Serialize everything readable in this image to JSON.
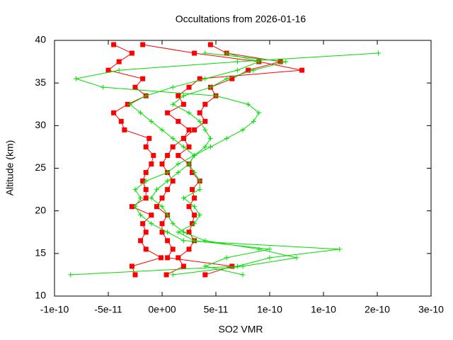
{
  "chart_data": {
    "type": "line",
    "title": "Occultations from 2026-01-16",
    "x_label": "SO2 VMR",
    "y_label": "Altitude (km)",
    "xlim": [
      -1e-10,
      2.5e-10
    ],
    "xticks": [
      {
        "value": -1e-10,
        "label": "-1e-10"
      },
      {
        "value": -5e-11,
        "label": "-5e-11"
      },
      {
        "value": 0,
        "label": "0e+00"
      },
      {
        "value": 5e-11,
        "label": "5e-11"
      },
      {
        "value": 1e-10,
        "label": "1e-10"
      },
      {
        "value": 1.5e-10,
        "label": "1e-10"
      },
      {
        "value": 2e-10,
        "label": "2e-10"
      },
      {
        "value": 2.5e-10,
        "label": "3e-10"
      }
    ],
    "ylim": [
      10,
      40
    ],
    "yticks": [
      10,
      15,
      20,
      25,
      30,
      35,
      40
    ],
    "grid": false,
    "series": [
      {
        "color": "#ff0000",
        "marker": "square",
        "altitude": [
          12.5,
          13.5,
          14.5,
          15.5,
          16.5,
          17.5,
          18.5,
          19.5,
          20.5,
          21.5,
          22.5,
          23.5,
          24.5,
          25.5,
          26.5,
          27.5,
          28.5,
          29.5,
          30.5,
          31.5,
          32.5,
          33.5,
          34.5,
          35.5,
          36.5,
          37.5,
          38.5,
          39.5
        ],
        "values": [
          -2.5e-11,
          -2.8e-11,
          -1e-12,
          -1.5e-11,
          -2e-11,
          -1.5e-11,
          -1.8e-11,
          -1e-11,
          -2.8e-11,
          -1.5e-11,
          -1.5e-11,
          -1.8e-11,
          -1.5e-11,
          -1e-11,
          -8e-12,
          -1.5e-11,
          -1.2e-11,
          -3.5e-11,
          -3.8e-11,
          -4.5e-11,
          -3.2e-11,
          -1.5e-11,
          -2.5e-11,
          -1.8e-11,
          -5e-11,
          -4e-11,
          -2.8e-11,
          -4.5e-11
        ]
      },
      {
        "color": "#ff0000",
        "marker": "square",
        "altitude": [
          12.5,
          13.5,
          14.5,
          15.5,
          16.5,
          17.5,
          18.5,
          19.5,
          20.5,
          21.5,
          22.5,
          23.5,
          24.5,
          25.5,
          26.5,
          27.5,
          28.5,
          29.5,
          30.5,
          31.5,
          32.5,
          33.5,
          34.5,
          35.5,
          36.5,
          37.5,
          38.5,
          39.5
        ],
        "values": [
          4e-12,
          2e-11,
          1.5e-11,
          2.5e-11,
          3e-11,
          2.5e-11,
          2.8e-11,
          3e-11,
          2.5e-11,
          3e-11,
          2.8e-11,
          3.5e-11,
          2.8e-11,
          2.5e-11,
          1.5e-11,
          2.5e-11,
          2e-11,
          3e-11,
          4e-11,
          3.5e-11,
          4e-11,
          5e-11,
          4.5e-11,
          6.5e-11,
          8e-11,
          1.1e-10,
          6e-11,
          4.5e-11
        ]
      },
      {
        "color": "#ff0000",
        "marker": "square",
        "altitude": [
          12.5,
          13.5,
          14.5,
          15.5,
          16.5,
          17.5,
          18.5,
          19.5,
          20.5,
          21.5,
          22.5,
          23.5,
          24.5,
          25.5,
          26.5,
          27.5,
          28.5,
          29.5,
          30.5,
          31.5,
          32.5,
          33.5,
          34.5,
          35.5,
          36.5,
          37.5,
          38.5,
          39.5
        ],
        "values": [
          4e-11,
          6.5e-11,
          5e-12,
          1e-11,
          5e-12,
          0,
          0,
          5e-12,
          -5e-12,
          0,
          5e-12,
          1e-11,
          5e-12,
          0,
          5e-12,
          1e-11,
          2e-11,
          2.5e-11,
          1.5e-11,
          5e-12,
          2e-11,
          1.5e-11,
          2.5e-11,
          3.5e-11,
          1.3e-10,
          9e-11,
          3e-11,
          -1.8e-11
        ]
      },
      {
        "color": "#00dd00",
        "marker": "plus",
        "altitude": [
          12.5,
          13.5,
          14.5,
          15.5,
          16.5,
          17.5,
          18.5,
          19.5,
          20.5,
          21.5,
          22.5,
          23.5,
          24.5,
          25.5,
          26.5,
          27.5,
          28.5,
          29.5,
          30.5,
          31.5,
          32.5,
          33.5,
          34.5,
          35.5,
          36.5,
          37.5,
          38.5
        ],
        "values": [
          -8.5e-11,
          7e-11,
          1e-10,
          1.65e-10,
          2e-11,
          5e-12,
          -1e-11,
          -2e-11,
          -2.5e-11,
          -2e-11,
          -2.5e-11,
          -1.5e-11,
          5e-12,
          1.5e-11,
          3e-11,
          4.5e-11,
          6e-11,
          7.5e-11,
          8.5e-11,
          9e-11,
          8e-11,
          5e-11,
          -5.5e-11,
          -8e-11,
          -4e-11,
          7e-11,
          2.01e-10
        ]
      },
      {
        "color": "#00dd00",
        "marker": "plus",
        "altitude": [
          12.5,
          13.5,
          14.5,
          15.5,
          16.5,
          17.5,
          18.5,
          19.5,
          20.5,
          21.5,
          22.5,
          23.5,
          24.5,
          25.5,
          26.5,
          27.5,
          28.5,
          29.5,
          30.5,
          31.5,
          32.5,
          33.5,
          34.5,
          35.5,
          36.5,
          37.5,
          38.5
        ],
        "values": [
          1e-11,
          7.5e-11,
          1.25e-10,
          9e-11,
          4e-11,
          2e-11,
          1e-11,
          5e-12,
          0,
          -1e-11,
          -5e-12,
          5e-12,
          1.5e-11,
          2.5e-11,
          3e-11,
          2e-11,
          1e-11,
          0,
          -1e-11,
          -2e-11,
          -3e-11,
          -1.5e-11,
          1e-11,
          4e-11,
          7e-11,
          9e-11,
          6e-11
        ]
      },
      {
        "color": "#00dd00",
        "marker": "plus",
        "altitude": [
          12.5,
          13.5,
          14.5,
          15.5,
          16.5,
          17.5,
          18.5,
          19.5,
          20.5,
          21.5,
          22.5,
          23.5,
          24.5,
          25.5,
          26.5,
          27.5,
          28.5,
          29.5,
          30.5,
          31.5,
          32.5,
          33.5,
          34.5,
          35.5,
          36.5,
          37.5,
          38.5
        ],
        "values": [
          7.5e-11,
          4e-11,
          6e-11,
          1e-10,
          3e-11,
          1.5e-11,
          3e-11,
          3.5e-11,
          3e-11,
          2e-11,
          3.5e-11,
          3.5e-11,
          3e-11,
          2.5e-11,
          3e-11,
          4e-11,
          4.5e-11,
          4e-11,
          3.5e-11,
          2.5e-11,
          1e-11,
          2e-11,
          4.5e-11,
          6e-11,
          8.5e-11,
          1.15e-10,
          4e-11
        ]
      }
    ]
  }
}
